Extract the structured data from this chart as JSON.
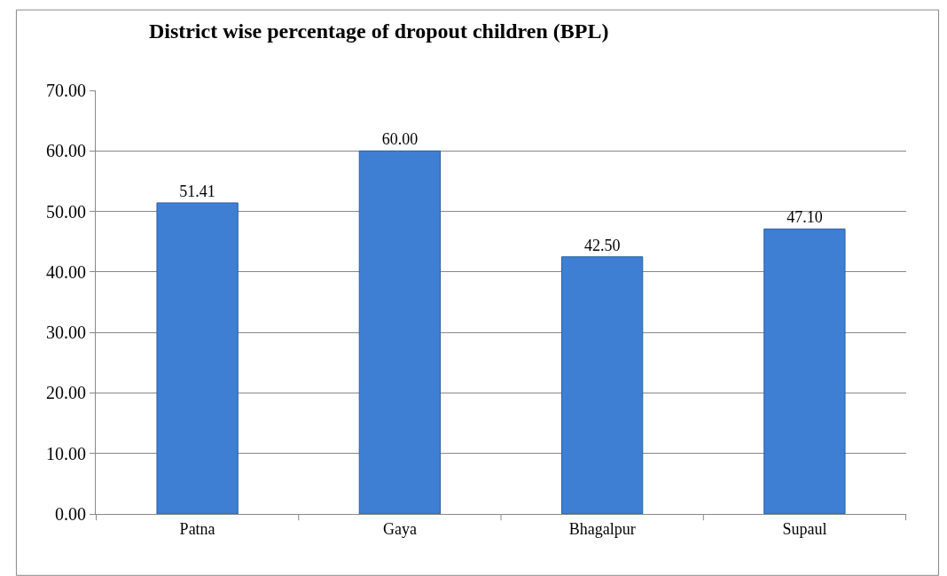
{
  "chart_data": {
    "type": "bar",
    "title": "District wise percentage of dropout children (BPL)",
    "categories": [
      "Patna",
      "Gaya",
      "Bhagalpur",
      "Supaul"
    ],
    "values": [
      51.41,
      60.0,
      42.5,
      47.1
    ],
    "value_labels": [
      "51.41",
      "60.00",
      "42.50",
      "47.10"
    ],
    "color": "#3e7fd4",
    "ylim": [
      0,
      70
    ],
    "yticks": [
      {
        "value": 0,
        "label": "0.00"
      },
      {
        "value": 10,
        "label": "10.00"
      },
      {
        "value": 20,
        "label": "20.00"
      },
      {
        "value": 30,
        "label": "30.00"
      },
      {
        "value": 40,
        "label": "40.00"
      },
      {
        "value": 50,
        "label": "50.00"
      },
      {
        "value": 60,
        "label": "60.00"
      },
      {
        "value": 70,
        "label": "70.00"
      }
    ],
    "grid": "y",
    "legend": false
  }
}
